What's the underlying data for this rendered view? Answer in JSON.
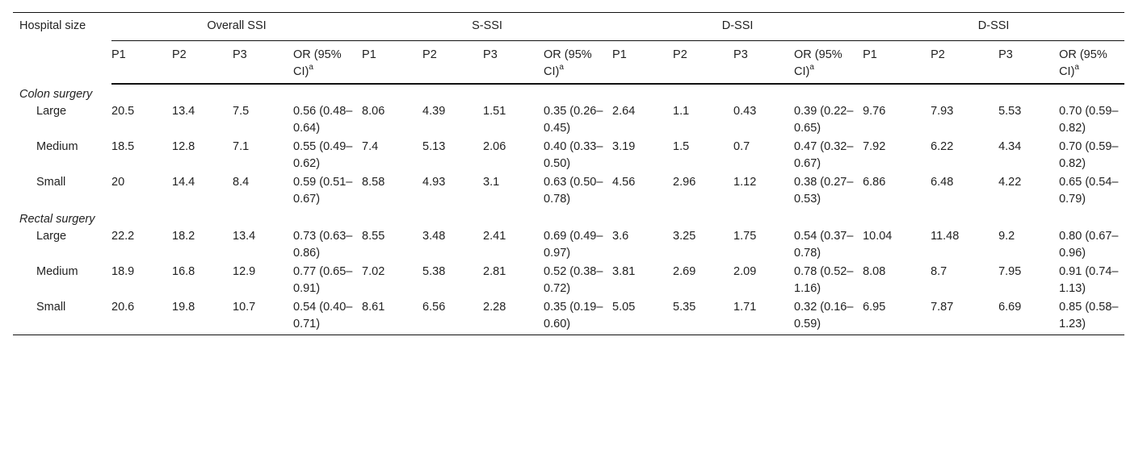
{
  "header": {
    "row_label": "Hospital size",
    "groups": [
      "Overall SSI",
      "S-SSI",
      "D-SSI",
      "D-SSI"
    ],
    "subcols": [
      "P1",
      "P2",
      "P3"
    ],
    "or_label": "OR (95% CI)",
    "or_sup": "a"
  },
  "sections": [
    {
      "title": "Colon surgery",
      "rows": [
        {
          "label": "Large",
          "values": [
            "20.5",
            "13.4",
            "7.5",
            "0.56 (0.48–0.64)",
            "8.06",
            "4.39",
            "1.51",
            "0.35 (0.26–0.45)",
            "2.64",
            "1.1",
            "0.43",
            "0.39 (0.22–0.65)",
            "9.76",
            "7.93",
            "5.53",
            "0.70 (0.59–0.82)"
          ]
        },
        {
          "label": "Medium",
          "values": [
            "18.5",
            "12.8",
            "7.1",
            "0.55 (0.49–0.62)",
            "7.4",
            "5.13",
            "2.06",
            "0.40 (0.33–0.50)",
            "3.19",
            "1.5",
            "0.7",
            "0.47 (0.32–0.67)",
            "7.92",
            "6.22",
            "4.34",
            "0.70 (0.59–0.82)"
          ]
        },
        {
          "label": "Small",
          "values": [
            "20",
            "14.4",
            "8.4",
            "0.59 (0.51–0.67)",
            "8.58",
            "4.93",
            "3.1",
            "0.63 (0.50–0.78)",
            "4.56",
            "2.96",
            "1.12",
            "0.38 (0.27–0.53)",
            "6.86",
            "6.48",
            "4.22",
            "0.65 (0.54–0.79)"
          ]
        }
      ]
    },
    {
      "title": "Rectal surgery",
      "rows": [
        {
          "label": "Large",
          "values": [
            "22.2",
            "18.2",
            "13.4",
            "0.73 (0.63–0.86)",
            "8.55",
            "3.48",
            "2.41",
            "0.69 (0.49–0.97)",
            "3.6",
            "3.25",
            "1.75",
            "0.54 (0.37–0.78)",
            "10.04",
            "11.48",
            "9.2",
            "0.80 (0.67–0.96)"
          ]
        },
        {
          "label": "Medium",
          "values": [
            "18.9",
            "16.8",
            "12.9",
            "0.77 (0.65–0.91)",
            "7.02",
            "5.38",
            "2.81",
            "0.52 (0.38–0.72)",
            "3.81",
            "2.69",
            "2.09",
            "0.78 (0.52–1.16)",
            "8.08",
            "8.7",
            "7.95",
            "0.91 (0.74–1.13)"
          ]
        },
        {
          "label": "Small",
          "values": [
            "20.6",
            "19.8",
            "10.7",
            "0.54 (0.40–0.71)",
            "8.61",
            "6.56",
            "2.28",
            "0.35 (0.19–0.60)",
            "5.05",
            "5.35",
            "1.71",
            "0.32 (0.16–0.59)",
            "6.95",
            "7.87",
            "6.69",
            "0.85 (0.58–1.23)"
          ]
        }
      ]
    }
  ]
}
